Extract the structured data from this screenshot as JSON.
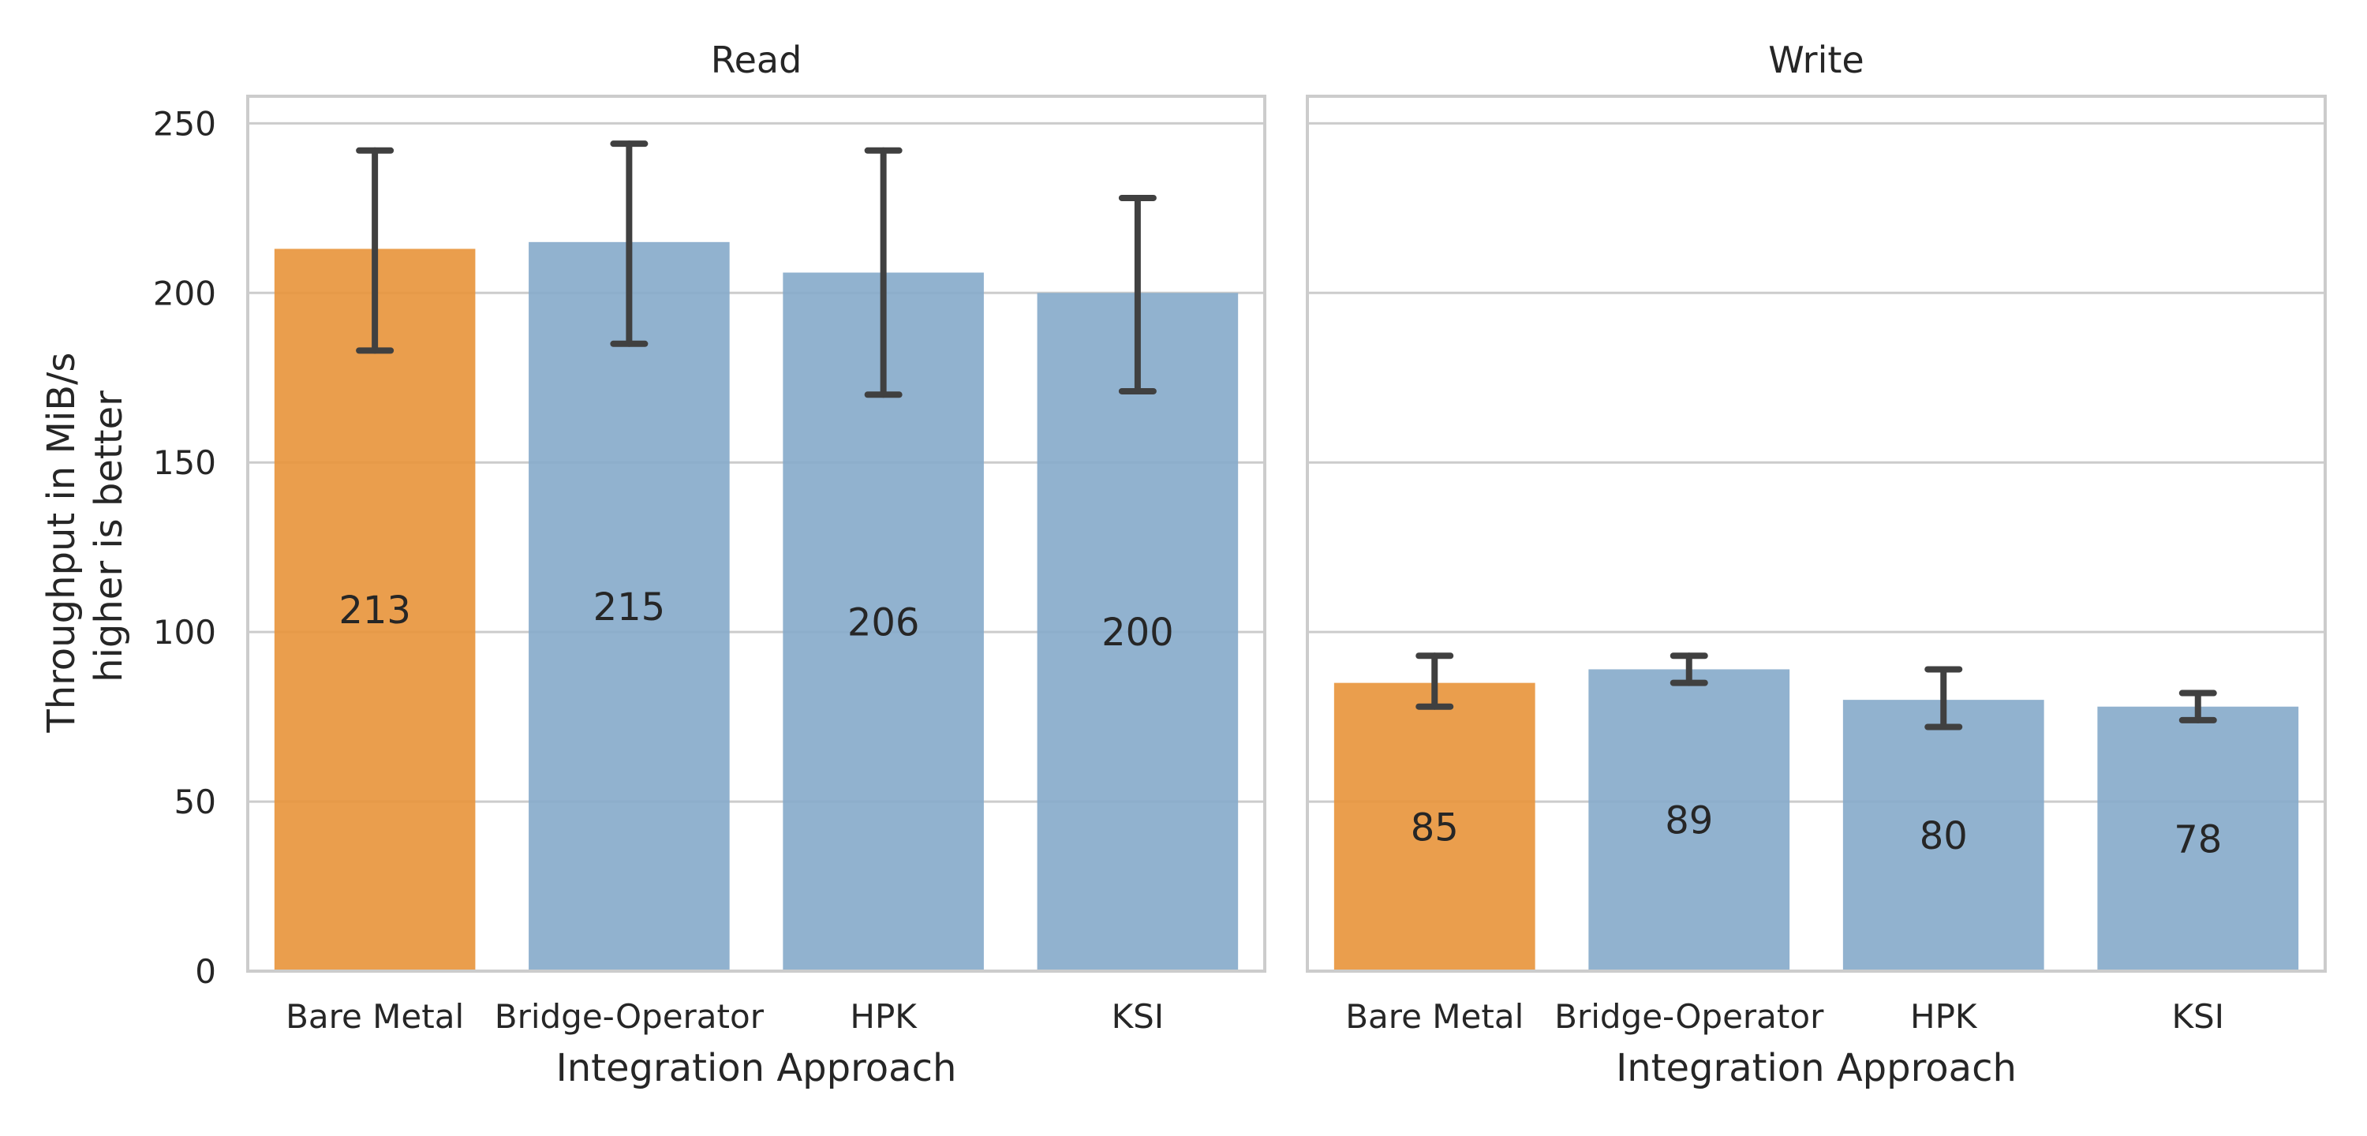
{
  "chart_data": {
    "type": "bar",
    "ylabel": [
      "Throughput in MiB/s",
      "higher is better"
    ],
    "ylim": [
      0,
      258
    ],
    "y_ticks": [
      0,
      50,
      100,
      150,
      200,
      250
    ],
    "grid": true,
    "categories": [
      "Bare Metal",
      "Bridge-Operator",
      "HPK",
      "KSI"
    ],
    "colors": {
      "highlight": "#E8963E",
      "default": "#88ABCB",
      "error_bar": "#404040",
      "grid": "#CCCCCC",
      "frame": "#CCCCCC"
    },
    "panels": [
      {
        "title": "Read",
        "xlabel": "Integration Approach",
        "values": [
          213,
          215,
          206,
          200
        ],
        "labels": [
          "213",
          "215",
          "206",
          "200"
        ],
        "error_low": [
          183,
          185,
          170,
          171
        ],
        "error_high": [
          242,
          244,
          242,
          228
        ],
        "highlight": [
          true,
          false,
          false,
          false
        ]
      },
      {
        "title": "Write",
        "xlabel": "Integration Approach",
        "values": [
          85,
          89,
          80,
          78
        ],
        "labels": [
          "85",
          "89",
          "80",
          "78"
        ],
        "error_low": [
          78,
          85,
          72,
          74
        ],
        "error_high": [
          93,
          93,
          89,
          82
        ],
        "highlight": [
          true,
          false,
          false,
          false
        ]
      }
    ]
  }
}
